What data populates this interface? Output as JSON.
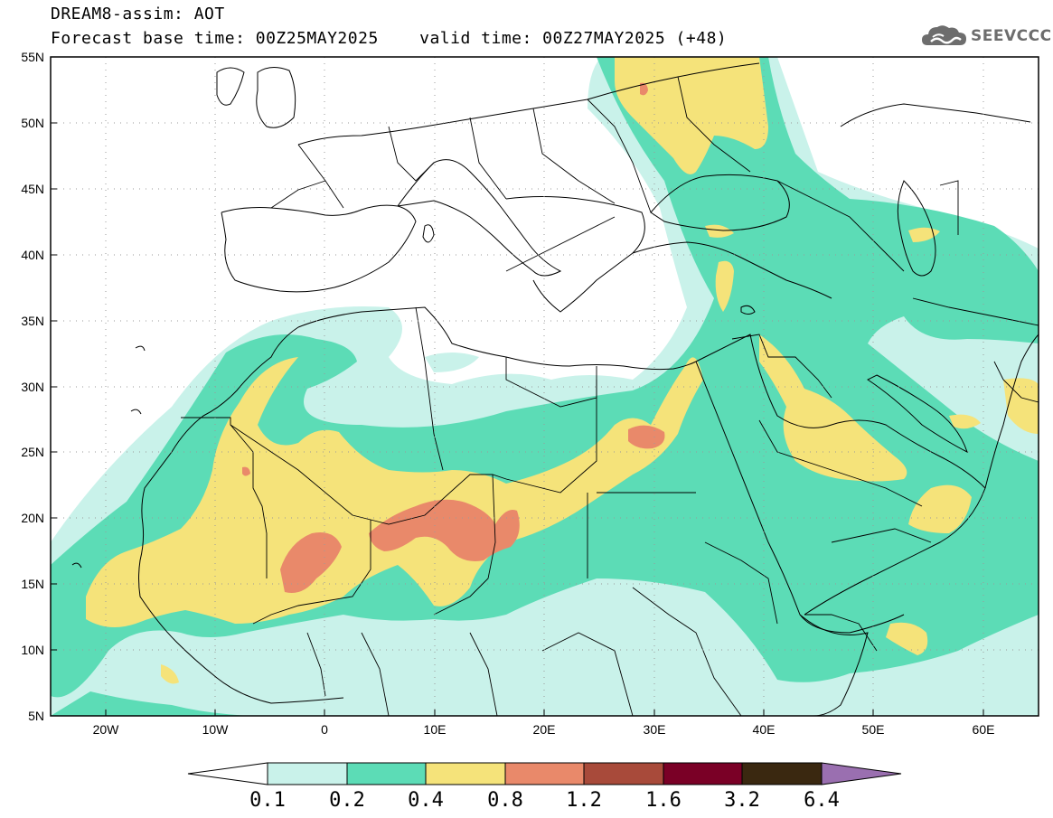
{
  "header": {
    "title_line1": "DREAM8-assim: AOT",
    "title_line2": "Forecast base time: 00Z25MAY2025    valid time: 00Z27MAY2025 (+48)"
  },
  "logo": {
    "text": "SEEVCCC",
    "icon": "cloud-icon"
  },
  "map": {
    "lat_labels": [
      "55N",
      "50N",
      "45N",
      "40N",
      "35N",
      "30N",
      "25N",
      "20N",
      "15N",
      "10N",
      "5N"
    ],
    "lon_labels": [
      "20W",
      "10W",
      "0",
      "10E",
      "20E",
      "30E",
      "40E",
      "50E",
      "60E"
    ],
    "lat_values": [
      55,
      50,
      45,
      40,
      35,
      30,
      25,
      20,
      15,
      10,
      5
    ],
    "lon_values": [
      -20,
      -10,
      0,
      10,
      20,
      30,
      40,
      50,
      60
    ],
    "extent": {
      "lon_min": -25,
      "lon_max": 65,
      "lat_min": 5,
      "lat_max": 55
    }
  },
  "legend": {
    "levels": [
      "0.1",
      "0.2",
      "0.4",
      "0.8",
      "1.2",
      "1.6",
      "3.2",
      "6.4"
    ],
    "colors": [
      "#c9f2ea",
      "#5cdcb6",
      "#f5e37a",
      "#e9896a",
      "#a84a3a",
      "#7a0026",
      "#3a2810",
      "#9a6fb0"
    ]
  },
  "colors": {
    "aot_01": "#c9f2ea",
    "aot_02": "#5cdcb6",
    "aot_04": "#f5e37a",
    "aot_08": "#e9896a",
    "coast": "#000000"
  }
}
